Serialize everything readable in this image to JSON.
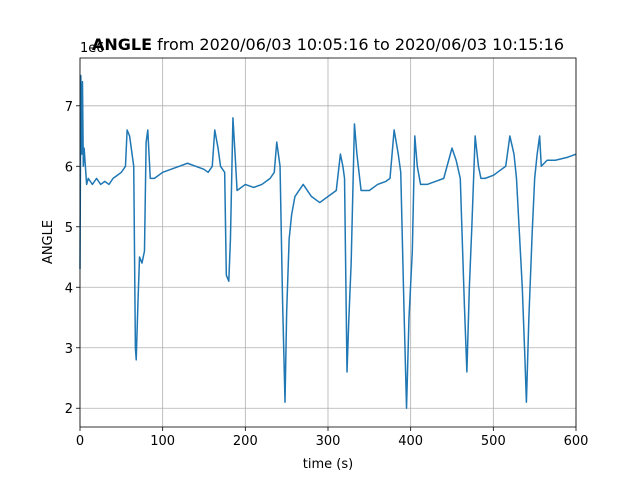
{
  "chart_data": {
    "type": "line",
    "title_bold": "ANGLE",
    "title_rest": "from 2020/06/03 10:05:16 to 2020/06/03 10:15:16",
    "x_label": "time (s)",
    "y_label": "ANGLE",
    "y_offset_label": "1e6",
    "color": "#1f77b4",
    "grid": true,
    "xlim": [
      0,
      600
    ],
    "xticks": [
      0,
      100,
      200,
      300,
      400,
      500,
      600
    ],
    "ylim": [
      1.69,
      7.79
    ],
    "yticks": [
      2,
      3,
      4,
      5,
      6,
      7
    ],
    "x": [
      0,
      1,
      2,
      3,
      4,
      5,
      6,
      8,
      10,
      15,
      20,
      25,
      30,
      35,
      40,
      45,
      50,
      55,
      57,
      60,
      62,
      65,
      67,
      68,
      70,
      72,
      75,
      78,
      80,
      82,
      85,
      90,
      100,
      110,
      120,
      130,
      140,
      150,
      155,
      160,
      163,
      167,
      170,
      175,
      177,
      180,
      182,
      185,
      188,
      190,
      200,
      210,
      220,
      230,
      235,
      238,
      242,
      245,
      248,
      250,
      253,
      256,
      260,
      265,
      270,
      280,
      290,
      300,
      310,
      315,
      318,
      320,
      323,
      325,
      328,
      332,
      335,
      340,
      350,
      360,
      370,
      375,
      380,
      385,
      388,
      392,
      395,
      398,
      402,
      405,
      408,
      412,
      420,
      430,
      440,
      450,
      455,
      460,
      465,
      468,
      471,
      474,
      478,
      482,
      485,
      490,
      500,
      505,
      515,
      520,
      525,
      528,
      535,
      538,
      540,
      543,
      547,
      550,
      553,
      556,
      558,
      565,
      575,
      590,
      600
    ],
    "values": [
      4.3,
      7.5,
      6.2,
      7.4,
      6.0,
      6.3,
      6.1,
      5.7,
      5.8,
      5.7,
      5.8,
      5.7,
      5.75,
      5.7,
      5.8,
      5.85,
      5.9,
      6.0,
      6.6,
      6.5,
      6.3,
      6.0,
      3.0,
      2.8,
      3.7,
      4.5,
      4.4,
      4.6,
      6.4,
      6.6,
      5.8,
      5.8,
      5.9,
      5.95,
      6.0,
      6.05,
      6.0,
      5.95,
      5.9,
      6.0,
      6.6,
      6.3,
      6.0,
      5.9,
      4.2,
      4.1,
      4.8,
      6.8,
      6.1,
      5.6,
      5.7,
      5.65,
      5.7,
      5.8,
      5.9,
      6.4,
      6.0,
      3.8,
      2.1,
      3.6,
      4.8,
      5.2,
      5.5,
      5.6,
      5.7,
      5.5,
      5.4,
      5.5,
      5.6,
      6.2,
      6.0,
      5.8,
      2.6,
      3.4,
      4.4,
      6.7,
      6.2,
      5.6,
      5.6,
      5.7,
      5.75,
      5.8,
      6.6,
      6.2,
      5.9,
      3.6,
      2.0,
      3.5,
      4.6,
      6.5,
      6.0,
      5.7,
      5.7,
      5.75,
      5.8,
      6.3,
      6.1,
      5.8,
      3.7,
      2.6,
      4.0,
      5.0,
      6.5,
      6.0,
      5.8,
      5.8,
      5.85,
      5.9,
      6.0,
      6.5,
      6.2,
      5.8,
      4.0,
      2.9,
      2.1,
      3.5,
      4.9,
      5.8,
      6.2,
      6.5,
      6.0,
      6.1,
      6.1,
      6.15,
      6.2
    ]
  }
}
